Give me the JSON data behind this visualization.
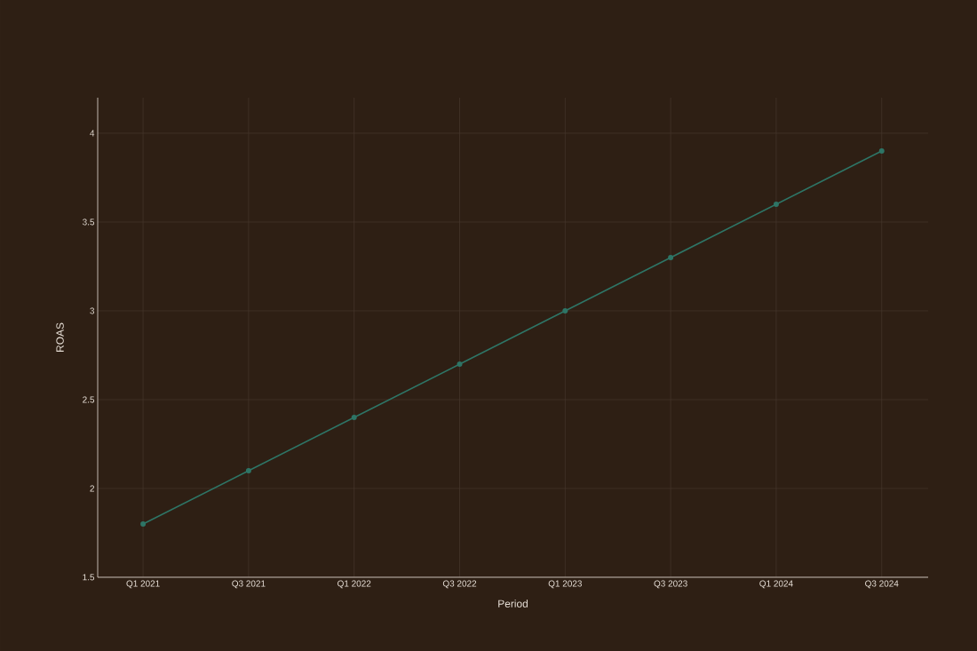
{
  "chart_data": {
    "type": "line",
    "xlabel": "Period",
    "ylabel": "ROAS",
    "categories": [
      "Q1 2021",
      "Q3 2021",
      "Q1 2022",
      "Q3 2022",
      "Q1 2023",
      "Q3 2023",
      "Q1 2024",
      "Q3 2024"
    ],
    "series": [
      {
        "color": "#2e7566",
        "values": [
          1.8,
          2.1,
          2.4,
          2.7,
          3.0,
          3.3,
          3.6,
          3.9
        ]
      }
    ],
    "ylim": [
      1.5,
      4.2
    ],
    "yticks": [
      1.5,
      2,
      2.5,
      3,
      3.5,
      4
    ],
    "grid": true,
    "marker": "circle",
    "line_style": "solid"
  }
}
